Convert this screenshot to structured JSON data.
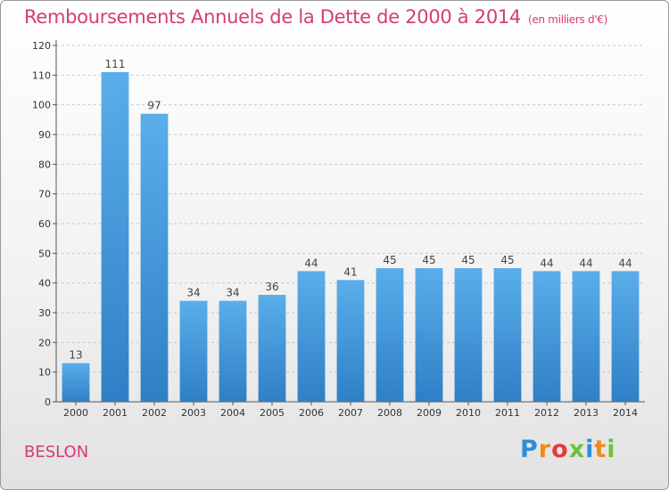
{
  "header": {
    "title": "Remboursements Annuels de la Dette de 2000 à 2014",
    "unit": "(en milliers d'€)"
  },
  "commune": "BESLON",
  "logo": {
    "letters": [
      {
        "ch": "P",
        "color": "#2d8fd6"
      },
      {
        "ch": "r",
        "color": "#f08c1a"
      },
      {
        "ch": "o",
        "color": "#e23a3a"
      },
      {
        "ch": "x",
        "color": "#6cc33a"
      },
      {
        "ch": "i",
        "color": "#2d8fd6"
      },
      {
        "ch": "t",
        "color": "#f08c1a"
      },
      {
        "ch": "i",
        "color": "#6cc33a"
      }
    ]
  },
  "chart_data": {
    "type": "bar",
    "title": "Remboursements Annuels de la Dette de 2000 à 2014",
    "subtitle": "(en milliers d'€)",
    "categories": [
      "2000",
      "2001",
      "2002",
      "2003",
      "2004",
      "2005",
      "2006",
      "2007",
      "2008",
      "2009",
      "2010",
      "2011",
      "2012",
      "2013",
      "2014"
    ],
    "values": [
      13,
      111,
      97,
      34,
      34,
      36,
      44,
      41,
      45,
      45,
      45,
      45,
      44,
      44,
      44
    ],
    "ylim": [
      0,
      120
    ],
    "yticks": [
      0,
      10,
      20,
      30,
      40,
      50,
      60,
      70,
      80,
      90,
      100,
      110,
      120
    ],
    "grid": true,
    "bar_color_top": "#5aaeea",
    "bar_color_bottom": "#2f7fc6"
  }
}
